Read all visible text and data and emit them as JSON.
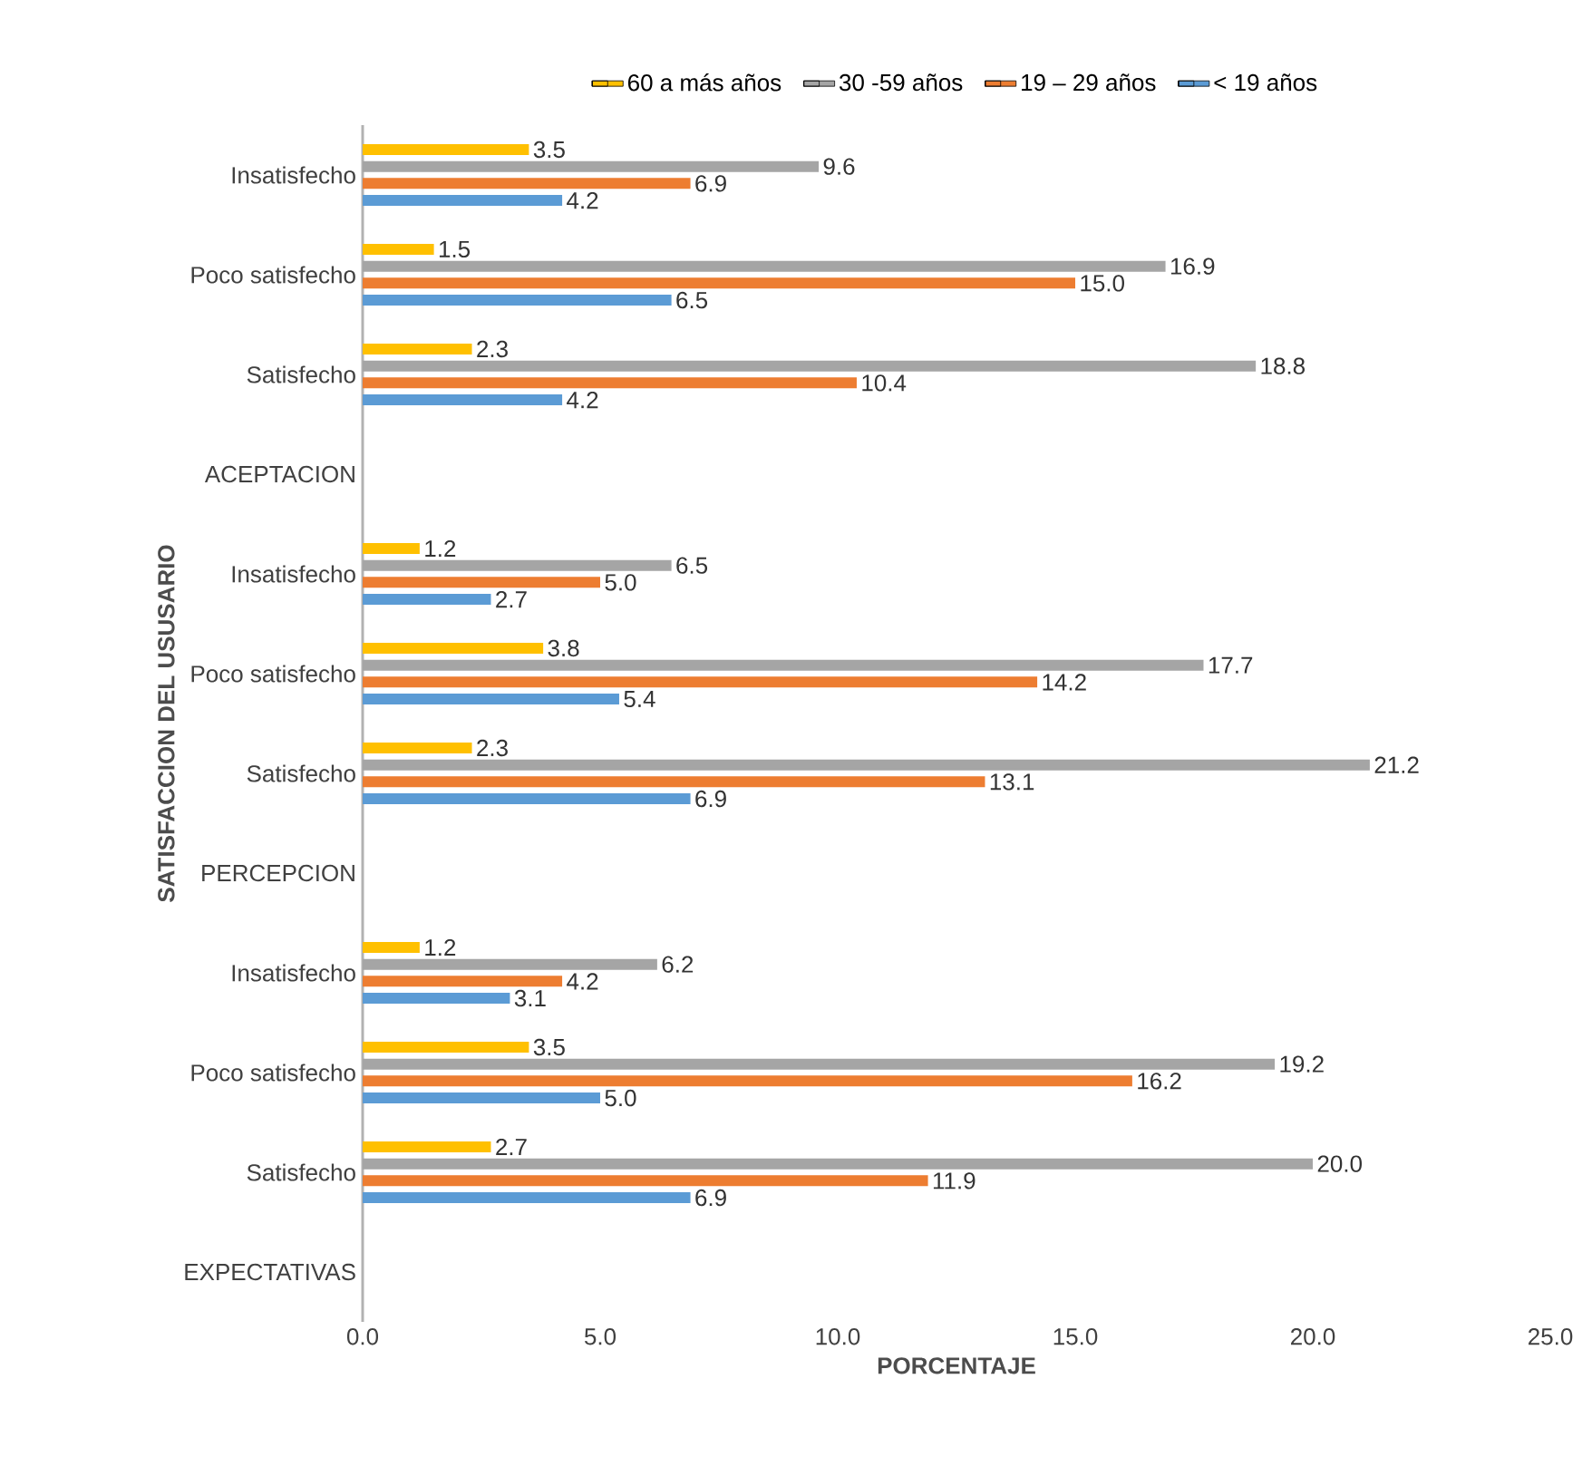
{
  "chart_data": {
    "type": "bar",
    "orientation": "horizontal",
    "xlabel": "PORCENTAJE",
    "ylabel": "SATISFACCION DEL USUSARIO",
    "categories": [
      "Insatisfecho",
      "Poco satisfecho",
      "Satisfecho",
      "ACEPTACION",
      "Insatisfecho",
      "Poco satisfecho",
      "Satisfecho",
      "PERCEPCION",
      "Insatisfecho",
      "Poco satisfecho",
      "Satisfecho",
      "EXPECTATIVAS"
    ],
    "series": [
      {
        "name": "60 a más años",
        "color": "#ffc000",
        "values": [
          3.5,
          1.5,
          2.3,
          null,
          1.2,
          3.8,
          2.3,
          null,
          1.2,
          3.5,
          2.7,
          null
        ],
        "value_labels": [
          "3.5",
          "1.5",
          "2.3",
          null,
          "1.2",
          "3.8",
          "2.3",
          null,
          "1.2",
          "3.5",
          "2.7",
          null
        ]
      },
      {
        "name": "30 -59 años",
        "color": "#a5a5a5",
        "values": [
          9.6,
          16.9,
          18.8,
          null,
          6.5,
          17.7,
          21.2,
          null,
          6.2,
          19.2,
          20.0,
          null
        ],
        "value_labels": [
          "9.6",
          "16.9",
          "18.8",
          null,
          "6.5",
          "17.7",
          "21.2",
          null,
          "6.2",
          "19.2",
          "20.0",
          null
        ]
      },
      {
        "name": "19 – 29 años",
        "color": "#ed7d31",
        "values": [
          6.9,
          15.0,
          10.4,
          null,
          5.0,
          14.2,
          13.1,
          null,
          4.2,
          16.2,
          11.9,
          null
        ],
        "value_labels": [
          "6.9",
          "15.0",
          "10.4",
          null,
          "5.0",
          "14.2",
          "13.1",
          null,
          "4.2",
          "16.2",
          "11.9",
          null
        ]
      },
      {
        "name": "< 19 años",
        "color": "#5b9bd5",
        "values": [
          4.2,
          6.5,
          4.2,
          null,
          2.7,
          5.4,
          6.9,
          null,
          3.1,
          5.0,
          6.9,
          null
        ],
        "value_labels": [
          "4.2",
          "6.5",
          "4.2",
          null,
          "2.7",
          "5.4",
          "6.9",
          null,
          "3.1",
          "5.0",
          "6.9",
          null
        ]
      }
    ],
    "xlim": [
      0,
      25
    ],
    "xticks": [
      {
        "value": 0,
        "label": "0.0"
      },
      {
        "value": 5,
        "label": "5.0"
      },
      {
        "value": 10,
        "label": "10.0"
      },
      {
        "value": 15,
        "label": "15.0"
      },
      {
        "value": 20,
        "label": "20.0"
      },
      {
        "value": 25,
        "label": "25.0"
      }
    ],
    "legend": "top"
  }
}
